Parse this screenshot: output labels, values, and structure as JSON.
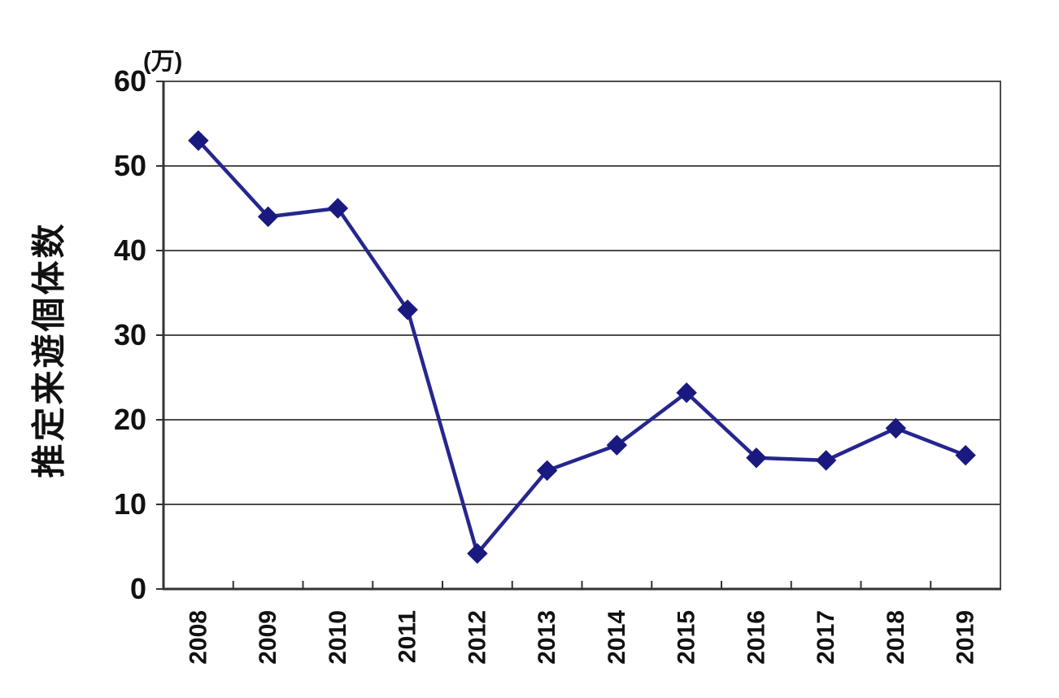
{
  "chart_data": {
    "type": "line",
    "title": "",
    "ylabel": "推定来遊個体数",
    "xlabel": "",
    "unit_label": "(万)",
    "categories": [
      "2008",
      "2009",
      "2010",
      "2011",
      "2012",
      "2013",
      "2014",
      "2015",
      "2016",
      "2017",
      "2018",
      "2019"
    ],
    "series": [
      {
        "name": "推定来遊個体数",
        "values": [
          53,
          44,
          45,
          33,
          4.2,
          14,
          17,
          23.2,
          15.5,
          15.2,
          19,
          15.8
        ]
      }
    ],
    "ylim": [
      0,
      60
    ],
    "yticks": [
      0,
      10,
      20,
      30,
      40,
      50,
      60
    ],
    "grid": true,
    "legend": "none",
    "marker": "diamond",
    "colors": {
      "line": "#26268f",
      "marker": "#191980",
      "grid": "#4d4d4d",
      "border": "#4d4d4d",
      "axis": "#333333",
      "text": "#111111"
    }
  }
}
